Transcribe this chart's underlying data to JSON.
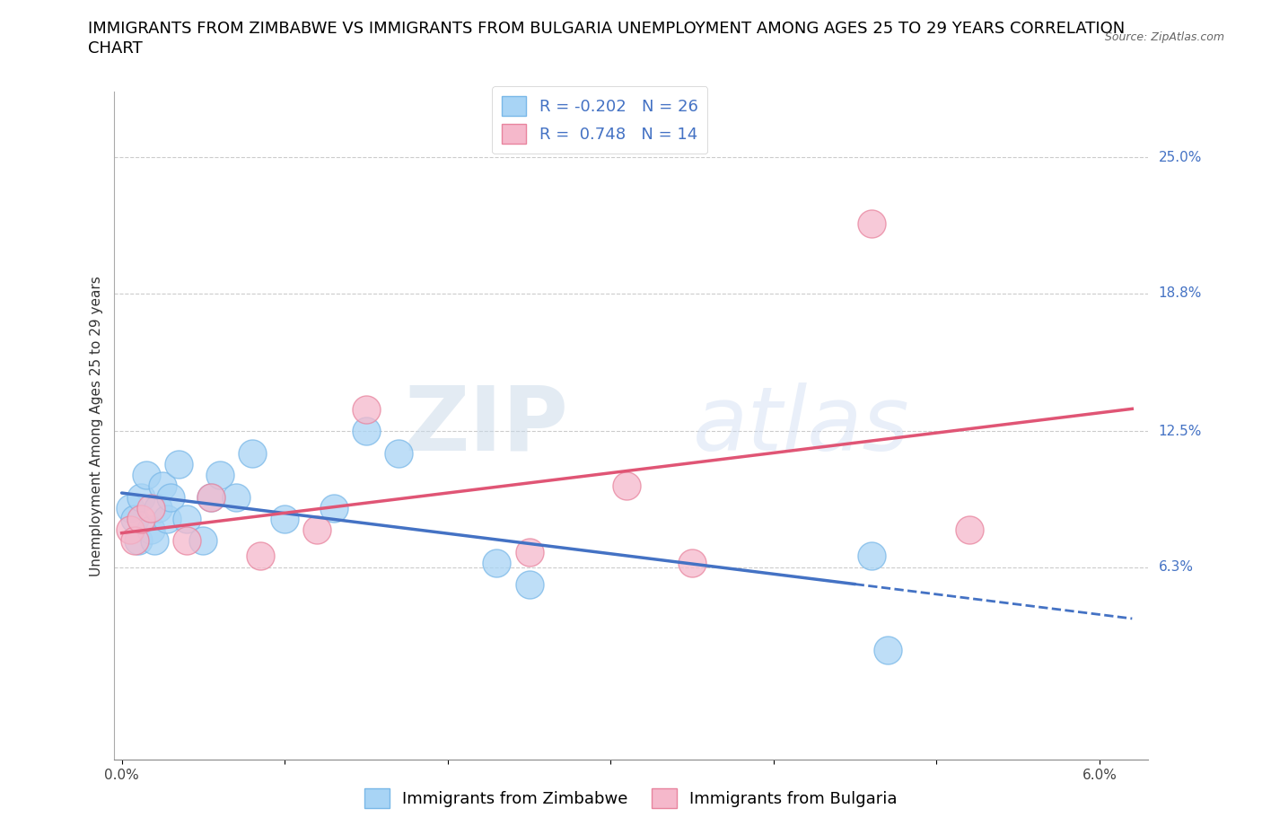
{
  "title_line1": "IMMIGRANTS FROM ZIMBABWE VS IMMIGRANTS FROM BULGARIA UNEMPLOYMENT AMONG AGES 25 TO 29 YEARS CORRELATION",
  "title_line2": "CHART",
  "source": "Source: ZipAtlas.com",
  "ylabel": "Unemployment Among Ages 25 to 29 years",
  "xlim": [
    -0.05,
    6.3
  ],
  "ylim": [
    -2.5,
    28.0
  ],
  "x_ticks": [
    0.0,
    1.0,
    2.0,
    3.0,
    4.0,
    5.0,
    6.0
  ],
  "x_tick_labels": [
    "0.0%",
    "",
    "",
    "",
    "",
    "",
    "6.0%"
  ],
  "y_tick_values": [
    6.3,
    12.5,
    18.8,
    25.0
  ],
  "y_tick_labels": [
    "6.3%",
    "12.5%",
    "18.8%",
    "25.0%"
  ],
  "watermark_zip": "ZIP",
  "watermark_atlas": "atlas",
  "zimbabwe_color": "#a8d4f5",
  "zimbabwe_edge_color": "#7ab8e8",
  "zimbabwe_line_color": "#4472c4",
  "bulgaria_color": "#f5b8cb",
  "bulgaria_edge_color": "#e8849e",
  "bulgaria_line_color": "#e05575",
  "legend_R_zimbabwe": "-0.202",
  "legend_N_zimbabwe": "26",
  "legend_R_bulgaria": "0.748",
  "legend_N_bulgaria": "14",
  "zimbabwe_x": [
    0.05,
    0.08,
    0.1,
    0.12,
    0.15,
    0.18,
    0.2,
    0.22,
    0.25,
    0.28,
    0.3,
    0.35,
    0.4,
    0.5,
    0.55,
    0.6,
    0.7,
    0.8,
    1.0,
    1.3,
    1.5,
    1.7,
    2.3,
    2.5,
    4.6,
    4.7
  ],
  "zimbabwe_y": [
    9.0,
    8.5,
    7.5,
    9.5,
    10.5,
    8.0,
    7.5,
    9.0,
    10.0,
    8.5,
    9.5,
    11.0,
    8.5,
    7.5,
    9.5,
    10.5,
    9.5,
    11.5,
    8.5,
    9.0,
    12.5,
    11.5,
    6.5,
    5.5,
    6.8,
    2.5
  ],
  "bulgaria_x": [
    0.05,
    0.08,
    0.12,
    0.18,
    0.4,
    0.55,
    0.85,
    1.2,
    1.5,
    2.5,
    3.1,
    3.5,
    4.6,
    5.2
  ],
  "bulgaria_y": [
    8.0,
    7.5,
    8.5,
    9.0,
    7.5,
    9.5,
    6.8,
    8.0,
    13.5,
    7.0,
    10.0,
    6.5,
    22.0,
    8.0
  ],
  "dot_size": 500,
  "title_fontsize": 13,
  "label_fontsize": 11,
  "tick_fontsize": 11,
  "legend_fontsize": 13,
  "source_fontsize": 9
}
